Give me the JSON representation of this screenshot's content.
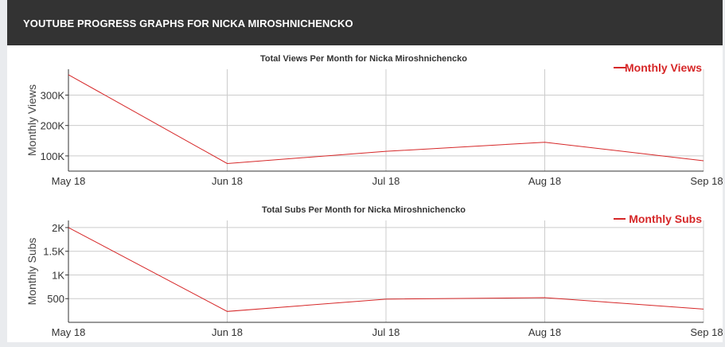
{
  "header": {
    "title": "YOUTUBE PROGRESS GRAPHS FOR NICKA MIROSHNICHENCKO"
  },
  "colors": {
    "series": "#d62728",
    "header_bg": "#333333",
    "grid": "#cccccc",
    "axis": "#333333"
  },
  "chart_data": [
    {
      "type": "line",
      "title": "Total Views Per Month for Nicka Miroshnichencko",
      "xlabel": "",
      "ylabel": "Monthly Views",
      "categories": [
        "May 18",
        "Jun 18",
        "Jul 18",
        "Aug 18",
        "Sep 18"
      ],
      "series": [
        {
          "name": "Monthly Views",
          "values": [
            367000,
            75000,
            115000,
            145000,
            84000
          ]
        }
      ],
      "yticks": [
        100000,
        200000,
        300000
      ],
      "ytick_labels": [
        "100K",
        "200K",
        "300K"
      ],
      "ylim": [
        50000,
        385000
      ],
      "grid": true,
      "legend": "top-right"
    },
    {
      "type": "line",
      "title": "Total Subs Per Month for Nicka Miroshnichencko",
      "xlabel": "",
      "ylabel": "Monthly Subs",
      "categories": [
        "May 18",
        "Jun 18",
        "Jul 18",
        "Aug 18",
        "Sep 18"
      ],
      "series": [
        {
          "name": "Monthly Subs",
          "values": [
            2000,
            230,
            490,
            520,
            280
          ]
        }
      ],
      "yticks": [
        500,
        1000,
        1500,
        2000
      ],
      "ytick_labels": [
        "500",
        "1K",
        "1.5K",
        "2K"
      ],
      "ylim": [
        0,
        2150
      ],
      "grid": true,
      "legend": "top-right"
    }
  ]
}
